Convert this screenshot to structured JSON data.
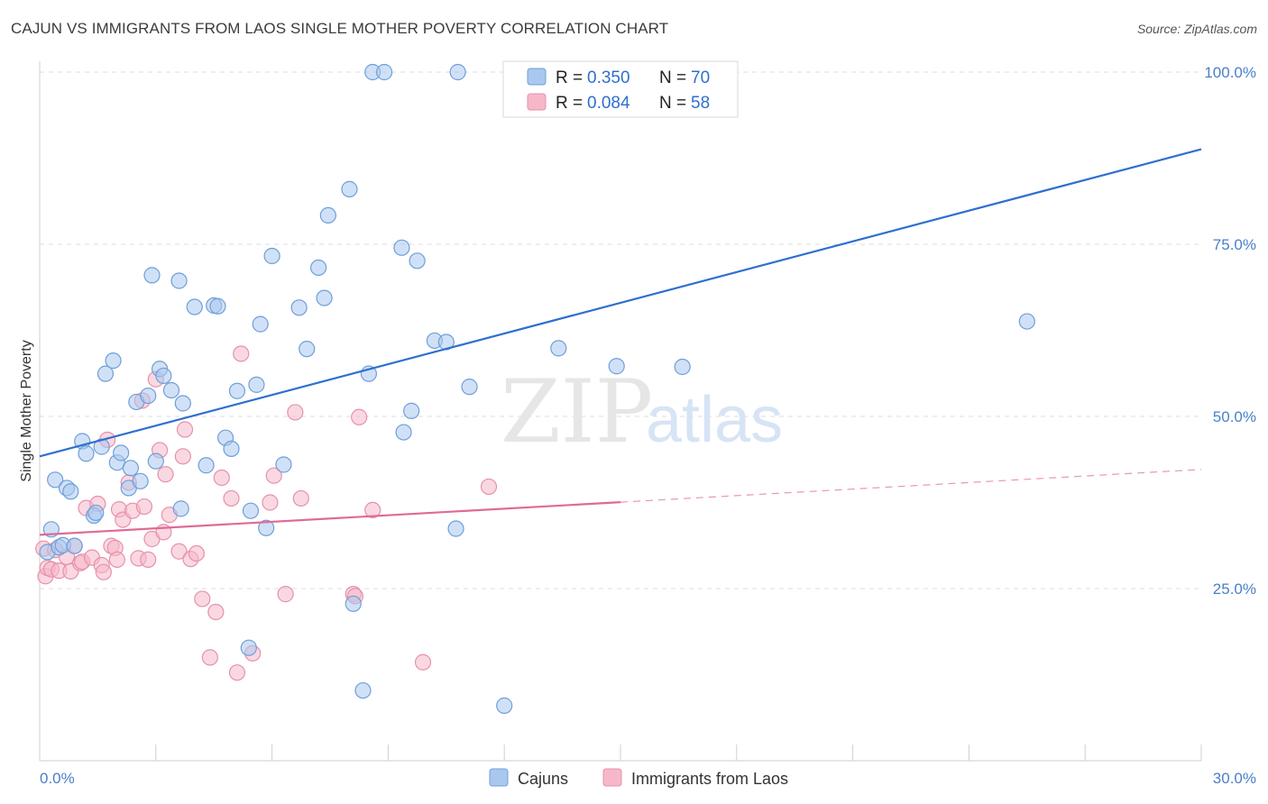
{
  "header": {
    "title": "CAJUN VS IMMIGRANTS FROM LAOS SINGLE MOTHER POVERTY CORRELATION CHART",
    "source": "Source: ZipAtlas.com"
  },
  "watermark": {
    "zip": "ZIP",
    "atlas": "atlas"
  },
  "legend_top": [
    {
      "r_label": "R =",
      "r_value": "0.350",
      "n_label": "N =",
      "n_value": "70"
    },
    {
      "r_label": "R =",
      "r_value": "0.084",
      "n_label": "N =",
      "n_value": "58"
    }
  ],
  "legend_bottom": [
    "Cajuns",
    "Immigrants from Laos"
  ],
  "colors": {
    "cajun_fill": "#a9c8f0",
    "cajun_stroke": "#6f9fd8",
    "cajun_line": "#2f6fcf",
    "laos_fill": "#f6b8c9",
    "laos_stroke": "#e691ab",
    "laos_line": "#e06a95",
    "tick_label": "#4a7fc9",
    "grid": "#dcdcdc"
  },
  "chart_data": {
    "type": "scatter",
    "title": "CAJUN VS IMMIGRANTS FROM LAOS SINGLE MOTHER POVERTY CORRELATION CHART",
    "xlabel": "",
    "ylabel": "Single Mother Poverty",
    "xlim": [
      0,
      30
    ],
    "ylim": [
      0,
      100
    ],
    "x_tick_labels": [
      "0.0%",
      "30.0%"
    ],
    "y_ticks": [
      25,
      50,
      75,
      100
    ],
    "y_tick_labels": [
      "25.0%",
      "50.0%",
      "75.0%",
      "100.0%"
    ],
    "grid": true,
    "legend_position": "top-center",
    "series": [
      {
        "name": "Cajuns",
        "r": 0.35,
        "n": 70,
        "trend": {
          "x": [
            0,
            30
          ],
          "y": [
            44.2,
            88.8
          ],
          "solid_until": 30
        },
        "points": [
          [
            0.2,
            30.3
          ],
          [
            0.3,
            33.6
          ],
          [
            0.4,
            40.8
          ],
          [
            0.5,
            31.0
          ],
          [
            0.6,
            31.3
          ],
          [
            0.7,
            39.6
          ],
          [
            0.8,
            39.1
          ],
          [
            0.9,
            31.2
          ],
          [
            1.1,
            46.4
          ],
          [
            1.2,
            44.6
          ],
          [
            1.4,
            35.6
          ],
          [
            1.45,
            36.0
          ],
          [
            1.6,
            45.6
          ],
          [
            1.7,
            56.2
          ],
          [
            1.9,
            58.1
          ],
          [
            2.0,
            43.3
          ],
          [
            2.1,
            44.7
          ],
          [
            2.3,
            39.6
          ],
          [
            2.35,
            42.5
          ],
          [
            2.5,
            52.1
          ],
          [
            2.6,
            40.6
          ],
          [
            2.8,
            53.0
          ],
          [
            2.9,
            70.5
          ],
          [
            3.0,
            43.5
          ],
          [
            3.1,
            56.9
          ],
          [
            3.2,
            55.9
          ],
          [
            3.4,
            53.8
          ],
          [
            3.6,
            69.7
          ],
          [
            3.65,
            36.6
          ],
          [
            3.7,
            51.9
          ],
          [
            4.0,
            65.9
          ],
          [
            4.3,
            42.9
          ],
          [
            4.5,
            66.1
          ],
          [
            4.6,
            66.0
          ],
          [
            4.8,
            46.9
          ],
          [
            4.95,
            45.3
          ],
          [
            5.1,
            53.7
          ],
          [
            5.4,
            16.4
          ],
          [
            5.45,
            36.3
          ],
          [
            5.6,
            54.6
          ],
          [
            5.7,
            63.4
          ],
          [
            5.85,
            33.8
          ],
          [
            6.0,
            73.3
          ],
          [
            6.3,
            43.0
          ],
          [
            6.7,
            65.8
          ],
          [
            6.9,
            59.8
          ],
          [
            7.2,
            71.6
          ],
          [
            7.35,
            67.2
          ],
          [
            7.45,
            79.2
          ],
          [
            8.0,
            83.0
          ],
          [
            8.1,
            22.8
          ],
          [
            8.35,
            10.2
          ],
          [
            8.5,
            56.2
          ],
          [
            8.6,
            100.0
          ],
          [
            8.9,
            100.0
          ],
          [
            9.35,
            74.5
          ],
          [
            9.4,
            47.7
          ],
          [
            9.6,
            50.8
          ],
          [
            9.75,
            72.6
          ],
          [
            10.2,
            61.0
          ],
          [
            10.5,
            60.8
          ],
          [
            10.75,
            33.7
          ],
          [
            10.8,
            100.0
          ],
          [
            11.1,
            54.3
          ],
          [
            12.0,
            8.0
          ],
          [
            13.0,
            100.0
          ],
          [
            13.4,
            59.9
          ],
          [
            14.9,
            57.3
          ],
          [
            16.6,
            57.2
          ],
          [
            25.5,
            63.8
          ]
        ]
      },
      {
        "name": "Immigrants from Laos",
        "r": 0.084,
        "n": 58,
        "trend": {
          "x": [
            0,
            30
          ],
          "y": [
            32.8,
            42.3
          ],
          "solid_until": 15
        },
        "points": [
          [
            0.1,
            30.8
          ],
          [
            0.15,
            26.8
          ],
          [
            0.2,
            28.0
          ],
          [
            0.3,
            27.8
          ],
          [
            0.4,
            30.6
          ],
          [
            0.5,
            27.6
          ],
          [
            0.7,
            29.6
          ],
          [
            0.8,
            27.5
          ],
          [
            0.9,
            31.2
          ],
          [
            1.05,
            28.7
          ],
          [
            1.1,
            28.9
          ],
          [
            1.2,
            36.7
          ],
          [
            1.35,
            29.5
          ],
          [
            1.5,
            37.3
          ],
          [
            1.6,
            28.4
          ],
          [
            1.65,
            27.4
          ],
          [
            1.75,
            46.6
          ],
          [
            1.85,
            31.2
          ],
          [
            1.95,
            30.9
          ],
          [
            2.0,
            29.2
          ],
          [
            2.05,
            36.5
          ],
          [
            2.15,
            35.0
          ],
          [
            2.3,
            40.4
          ],
          [
            2.4,
            36.3
          ],
          [
            2.55,
            29.4
          ],
          [
            2.65,
            52.3
          ],
          [
            2.7,
            36.9
          ],
          [
            2.8,
            29.2
          ],
          [
            2.9,
            32.2
          ],
          [
            3.0,
            55.4
          ],
          [
            3.1,
            45.1
          ],
          [
            3.2,
            33.2
          ],
          [
            3.25,
            41.6
          ],
          [
            3.35,
            35.7
          ],
          [
            3.6,
            30.4
          ],
          [
            3.7,
            44.2
          ],
          [
            3.75,
            48.1
          ],
          [
            3.9,
            29.3
          ],
          [
            4.05,
            30.1
          ],
          [
            4.2,
            23.5
          ],
          [
            4.4,
            15.0
          ],
          [
            4.55,
            21.6
          ],
          [
            4.7,
            41.1
          ],
          [
            4.95,
            38.1
          ],
          [
            5.1,
            12.8
          ],
          [
            5.2,
            59.1
          ],
          [
            5.5,
            15.6
          ],
          [
            5.95,
            37.5
          ],
          [
            6.05,
            41.4
          ],
          [
            6.35,
            24.2
          ],
          [
            6.6,
            50.6
          ],
          [
            6.75,
            38.1
          ],
          [
            8.1,
            24.2
          ],
          [
            8.15,
            23.9
          ],
          [
            8.25,
            49.9
          ],
          [
            8.6,
            36.4
          ],
          [
            9.9,
            14.3
          ],
          [
            11.6,
            39.8
          ]
        ]
      }
    ]
  }
}
